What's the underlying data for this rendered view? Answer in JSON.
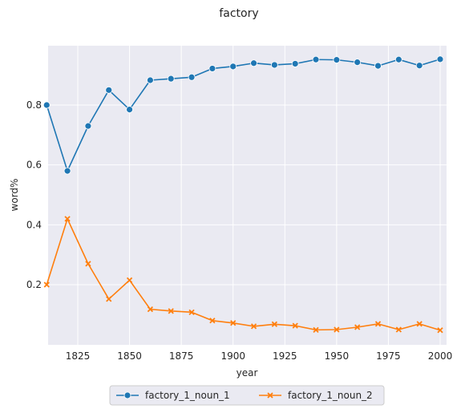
{
  "chart_data": {
    "type": "line",
    "title": "factory",
    "xlabel": "year",
    "ylabel": "word%",
    "xlim": [
      1809,
      2001
    ],
    "ylim": [
      0.0,
      1.0
    ],
    "xticks": [
      1825,
      1850,
      1875,
      1900,
      1925,
      1950,
      1975,
      2000
    ],
    "yticks": [
      0.2,
      0.4,
      0.6,
      0.8
    ],
    "ytick_labels": [
      "0.2",
      "0.4",
      "0.6",
      "0.8"
    ],
    "grid": true,
    "legend_position": "bottom-center",
    "x": [
      1810,
      1820,
      1830,
      1840,
      1850,
      1860,
      1870,
      1880,
      1890,
      1900,
      1910,
      1920,
      1930,
      1940,
      1950,
      1960,
      1970,
      1980,
      1990,
      2000
    ],
    "series": [
      {
        "name": "factory_1_noun_1",
        "marker": "circle",
        "color": "#1f77b4",
        "values": [
          0.8,
          0.58,
          0.73,
          0.85,
          0.785,
          0.883,
          0.888,
          0.893,
          0.922,
          0.929,
          0.94,
          0.934,
          0.938,
          0.952,
          0.951,
          0.943,
          0.931,
          0.952,
          0.932,
          0.953
        ]
      },
      {
        "name": "factory_1_noun_2",
        "marker": "x",
        "color": "#ff7f0e",
        "values": [
          0.2,
          0.42,
          0.27,
          0.152,
          0.215,
          0.118,
          0.112,
          0.108,
          0.08,
          0.072,
          0.061,
          0.068,
          0.063,
          0.049,
          0.05,
          0.058,
          0.069,
          0.05,
          0.069,
          0.048
        ]
      }
    ]
  }
}
